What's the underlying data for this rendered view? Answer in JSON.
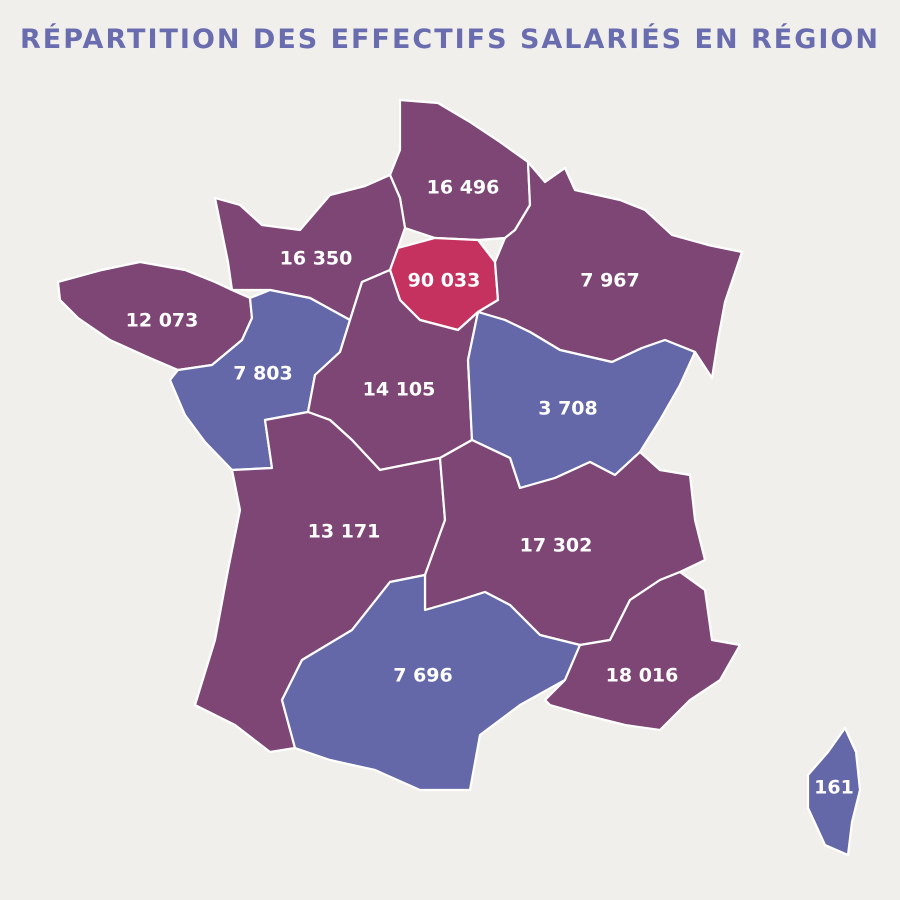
{
  "title": "RÉPARTITION DES EFFECTIFS SALARIÉS EN RÉGION",
  "colors": {
    "background": "#f0efeb",
    "title": "#6a6cb0",
    "high": "#7e4675",
    "low": "#6468a8",
    "top": "#c6325f",
    "label": "#ffffff"
  },
  "regions": [
    {
      "key": "hauts_de_france",
      "value": "16 496",
      "color_key": "high"
    },
    {
      "key": "normandie",
      "value": "16 350",
      "color_key": "high"
    },
    {
      "key": "ile_de_france",
      "value": "90 033",
      "color_key": "top"
    },
    {
      "key": "grand_est",
      "value": "7 967",
      "color_key": "high"
    },
    {
      "key": "bretagne",
      "value": "12 073",
      "color_key": "high"
    },
    {
      "key": "pays_de_la_loire",
      "value": "7 803",
      "color_key": "low"
    },
    {
      "key": "centre_val_de_loire",
      "value": "14 105",
      "color_key": "high"
    },
    {
      "key": "bourgogne_franche_comte",
      "value": "3 708",
      "color_key": "low"
    },
    {
      "key": "nouvelle_aquitaine",
      "value": "13 171",
      "color_key": "high"
    },
    {
      "key": "auvergne_rhone_alpes",
      "value": "17 302",
      "color_key": "high"
    },
    {
      "key": "occitanie",
      "value": "7 696",
      "color_key": "low"
    },
    {
      "key": "provence_alpes_cote_d_azur",
      "value": "18 016",
      "color_key": "high"
    },
    {
      "key": "corse",
      "value": "161",
      "color_key": "low"
    }
  ]
}
